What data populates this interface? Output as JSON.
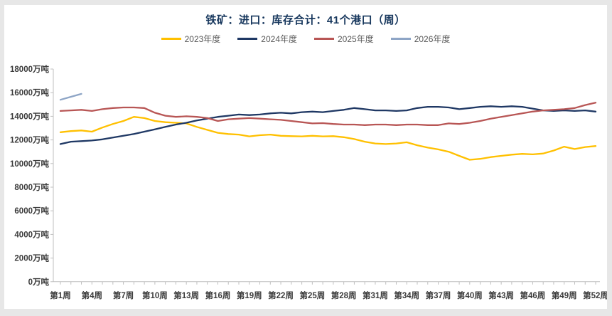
{
  "frame": {
    "border_color": "#e7e7e7",
    "panel_color": "#ffffff"
  },
  "title": {
    "text": "铁矿：进口：库存合计：41个港口（周）",
    "color": "#17375D"
  },
  "legend": {
    "items": [
      {
        "label": "2023年度",
        "color": "#FFC000"
      },
      {
        "label": "2024年度",
        "color": "#1F3864"
      },
      {
        "label": "2025年度",
        "color": "#B85655"
      },
      {
        "label": "2026年度",
        "color": "#8EA5C6"
      }
    ]
  },
  "chart_data": {
    "type": "line",
    "title": "铁矿：进口：库存合计：41个港口（周）",
    "x_weeks": 52,
    "x_tick_labels": [
      "第1周",
      "第4周",
      "第7周",
      "第10周",
      "第13周",
      "第16周",
      "第19周",
      "第22周",
      "第25周",
      "第28周",
      "第31周",
      "第34周",
      "第37周",
      "第40周",
      "第43周",
      "第46周",
      "第49周",
      "第52周"
    ],
    "x_label_interval": 3,
    "y_unit": "万吨",
    "y_ticks": [
      0,
      2000,
      4000,
      6000,
      8000,
      10000,
      12000,
      14000,
      16000,
      18000
    ],
    "ylim": [
      0,
      18000
    ],
    "grid": false,
    "legend_position": "top",
    "axis_color": "#bfbfbf",
    "series": [
      {
        "name": "2023年度",
        "color": "#FFC000",
        "values": [
          12650,
          12750,
          12800,
          12700,
          13050,
          13350,
          13600,
          13950,
          13850,
          13600,
          13500,
          13450,
          13400,
          13100,
          12850,
          12600,
          12500,
          12450,
          12300,
          12400,
          12450,
          12350,
          12320,
          12300,
          12350,
          12300,
          12320,
          12230,
          12070,
          11850,
          11700,
          11650,
          11700,
          11800,
          11550,
          11350,
          11200,
          11000,
          10650,
          10320,
          10400,
          10550,
          10650,
          10750,
          10820,
          10780,
          10850,
          11100,
          11430,
          11230,
          11400,
          11480
        ]
      },
      {
        "name": "2024年度",
        "color": "#1F3864",
        "values": [
          11650,
          11850,
          11900,
          11950,
          12050,
          12200,
          12350,
          12500,
          12700,
          12900,
          13100,
          13300,
          13450,
          13650,
          13800,
          13950,
          14050,
          14150,
          14100,
          14150,
          14250,
          14300,
          14250,
          14350,
          14400,
          14350,
          14450,
          14550,
          14700,
          14600,
          14500,
          14500,
          14450,
          14500,
          14700,
          14800,
          14800,
          14750,
          14600,
          14700,
          14800,
          14850,
          14800,
          14850,
          14800,
          14650,
          14500,
          14450,
          14500,
          14450,
          14500,
          14400
        ]
      },
      {
        "name": "2025年度",
        "color": "#B85655",
        "values": [
          14450,
          14500,
          14550,
          14450,
          14600,
          14700,
          14750,
          14750,
          14700,
          14300,
          14050,
          13950,
          14000,
          13950,
          13850,
          13600,
          13750,
          13800,
          13850,
          13800,
          13750,
          13700,
          13600,
          13500,
          13400,
          13420,
          13350,
          13300,
          13300,
          13250,
          13300,
          13300,
          13250,
          13300,
          13300,
          13250,
          13250,
          13400,
          13350,
          13450,
          13600,
          13800,
          13950,
          14100,
          14250,
          14400,
          14500,
          14550,
          14600,
          14700,
          14950,
          15150
        ]
      },
      {
        "name": "2026年度",
        "color": "#8EA5C6",
        "values": [
          15400,
          15650,
          15900
        ]
      }
    ]
  }
}
